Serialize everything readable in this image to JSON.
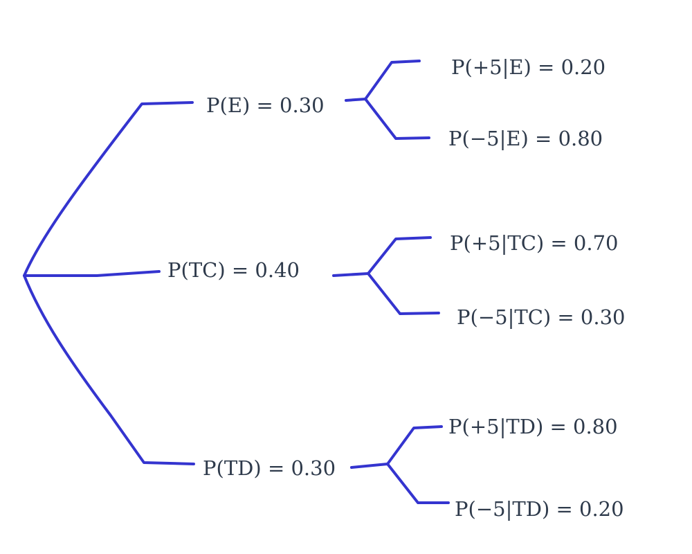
{
  "colors": {
    "branch": "#3434cf",
    "text": "#2e3a4b"
  },
  "tree": {
    "first_level": [
      {
        "label": "P(E) = 0.30",
        "children": [
          {
            "label": "P(+5|E) = 0.20"
          },
          {
            "label": "P(−5|E) = 0.80"
          }
        ]
      },
      {
        "label": "P(TC) = 0.40",
        "children": [
          {
            "label": "P(+5|TC) = 0.70"
          },
          {
            "label": "P(−5|TC) = 0.30"
          }
        ]
      },
      {
        "label": "P(TD) = 0.30",
        "children": [
          {
            "label": "P(+5|TD) = 0.80"
          },
          {
            "label": "P(−5|TD) = 0.20"
          }
        ]
      }
    ]
  }
}
